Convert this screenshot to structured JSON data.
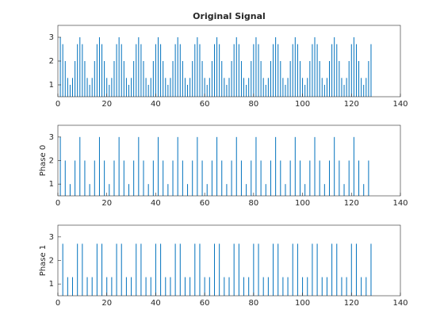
{
  "chart_data": [
    {
      "type": "stem",
      "title": "Original Signal",
      "color": "#0072bd",
      "x": [
        1,
        2,
        3,
        4,
        5,
        6,
        7,
        8,
        9,
        10,
        11,
        12,
        13,
        14,
        15,
        16,
        17,
        18,
        19,
        20,
        21,
        22,
        23,
        24,
        25,
        26,
        27,
        28,
        29,
        30,
        31,
        32,
        33,
        34,
        35,
        36,
        37,
        38,
        39,
        40,
        41,
        42,
        43,
        44,
        45,
        46,
        47,
        48,
        49,
        50,
        51,
        52,
        53,
        54,
        55,
        56,
        57,
        58,
        59,
        60,
        61,
        62,
        63,
        64,
        65,
        66,
        67,
        68,
        69,
        70,
        71,
        72,
        73,
        74,
        75,
        76,
        77,
        78,
        79,
        80,
        81,
        82,
        83,
        84,
        85,
        86,
        87,
        88,
        89,
        90,
        91,
        92,
        93,
        94,
        95,
        96,
        97,
        98,
        99,
        100,
        101,
        102,
        103,
        104,
        105,
        106,
        107,
        108,
        109,
        110,
        111,
        112,
        113,
        114,
        115,
        116,
        117,
        118,
        119,
        120,
        121,
        122,
        123,
        124,
        125,
        126,
        127,
        128
      ],
      "values": [
        3,
        2.71,
        2,
        1.29,
        1,
        1.29,
        2,
        2.71,
        3,
        2.71,
        2,
        1.29,
        1,
        1.29,
        2,
        2.71,
        3,
        2.71,
        2,
        1.29,
        1,
        1.29,
        2,
        2.71,
        3,
        2.71,
        2,
        1.29,
        1,
        1.29,
        2,
        2.71,
        3,
        2.71,
        2,
        1.29,
        1,
        1.29,
        2,
        2.71,
        3,
        2.71,
        2,
        1.29,
        1,
        1.29,
        2,
        2.71,
        3,
        2.71,
        2,
        1.29,
        1,
        1.29,
        2,
        2.71,
        3,
        2.71,
        2,
        1.29,
        1,
        1.29,
        2,
        2.71,
        3,
        2.71,
        2,
        1.29,
        1,
        1.29,
        2,
        2.71,
        3,
        2.71,
        2,
        1.29,
        1,
        1.29,
        2,
        2.71,
        3,
        2.71,
        2,
        1.29,
        1,
        1.29,
        2,
        2.71,
        3,
        2.71,
        2,
        1.29,
        1,
        1.29,
        2,
        2.71,
        3,
        2.71,
        2,
        1.29,
        1,
        1.29,
        2,
        2.71,
        3,
        2.71,
        2,
        1.29,
        1,
        1.29,
        2,
        2.71,
        3,
        2.71,
        2,
        1.29,
        1,
        1.29,
        2,
        2.71,
        3,
        2.71,
        2,
        1.29,
        1,
        1.29,
        2,
        2.71
      ],
      "xlim": [
        0,
        140
      ],
      "xticks": [
        0,
        20,
        40,
        60,
        80,
        100,
        120,
        140
      ],
      "ylim": [
        0.5,
        3.5
      ],
      "yticks": [
        1,
        2,
        3
      ]
    },
    {
      "type": "stem",
      "ylabel": "Phase 0",
      "color": "#0072bd",
      "x": [
        1,
        3,
        5,
        7,
        9,
        11,
        13,
        15,
        17,
        19,
        21,
        23,
        25,
        27,
        29,
        31,
        33,
        35,
        37,
        39,
        41,
        43,
        45,
        47,
        49,
        51,
        53,
        55,
        57,
        59,
        61,
        63,
        65,
        67,
        69,
        71,
        73,
        75,
        77,
        79,
        81,
        83,
        85,
        87,
        89,
        91,
        93,
        95,
        97,
        99,
        101,
        103,
        105,
        107,
        109,
        111,
        113,
        115,
        117,
        119,
        121,
        123,
        125,
        127
      ],
      "values": [
        3,
        2,
        1,
        2,
        3,
        2,
        1,
        2,
        3,
        2,
        1,
        2,
        3,
        2,
        1,
        2,
        3,
        2,
        1,
        2,
        3,
        2,
        1,
        2,
        3,
        2,
        1,
        2,
        3,
        2,
        1,
        2,
        3,
        2,
        1,
        2,
        3,
        2,
        1,
        2,
        3,
        2,
        1,
        2,
        3,
        2,
        1,
        2,
        3,
        2,
        1,
        2,
        3,
        2,
        1,
        2,
        3,
        2,
        1,
        2,
        3,
        2,
        1,
        2
      ],
      "xlim": [
        0,
        140
      ],
      "xticks": [
        0,
        20,
        40,
        60,
        80,
        100,
        120,
        140
      ],
      "ylim": [
        0.5,
        3.5
      ],
      "yticks": [
        1,
        2,
        3
      ]
    },
    {
      "type": "stem",
      "ylabel": "Phase 1",
      "color": "#0072bd",
      "x": [
        2,
        4,
        6,
        8,
        10,
        12,
        14,
        16,
        18,
        20,
        22,
        24,
        26,
        28,
        30,
        32,
        34,
        36,
        38,
        40,
        42,
        44,
        46,
        48,
        50,
        52,
        54,
        56,
        58,
        60,
        62,
        64,
        66,
        68,
        70,
        72,
        74,
        76,
        78,
        80,
        82,
        84,
        86,
        88,
        90,
        92,
        94,
        96,
        98,
        100,
        102,
        104,
        106,
        108,
        110,
        112,
        114,
        116,
        118,
        120,
        122,
        124,
        126,
        128
      ],
      "values": [
        2.71,
        1.29,
        1.29,
        2.71,
        2.71,
        1.29,
        1.29,
        2.71,
        2.71,
        1.29,
        1.29,
        2.71,
        2.71,
        1.29,
        1.29,
        2.71,
        2.71,
        1.29,
        1.29,
        2.71,
        2.71,
        1.29,
        1.29,
        2.71,
        2.71,
        1.29,
        1.29,
        2.71,
        2.71,
        1.29,
        1.29,
        2.71,
        2.71,
        1.29,
        1.29,
        2.71,
        2.71,
        1.29,
        1.29,
        2.71,
        2.71,
        1.29,
        1.29,
        2.71,
        2.71,
        1.29,
        1.29,
        2.71,
        2.71,
        1.29,
        1.29,
        2.71,
        2.71,
        1.29,
        1.29,
        2.71,
        2.71,
        1.29,
        1.29,
        2.71,
        2.71,
        1.29,
        1.29,
        2.71
      ],
      "xlim": [
        0,
        140
      ],
      "xticks": [
        0,
        20,
        40,
        60,
        80,
        100,
        120,
        140
      ],
      "ylim": [
        0.5,
        3.5
      ],
      "yticks": [
        1,
        2,
        3
      ]
    }
  ]
}
